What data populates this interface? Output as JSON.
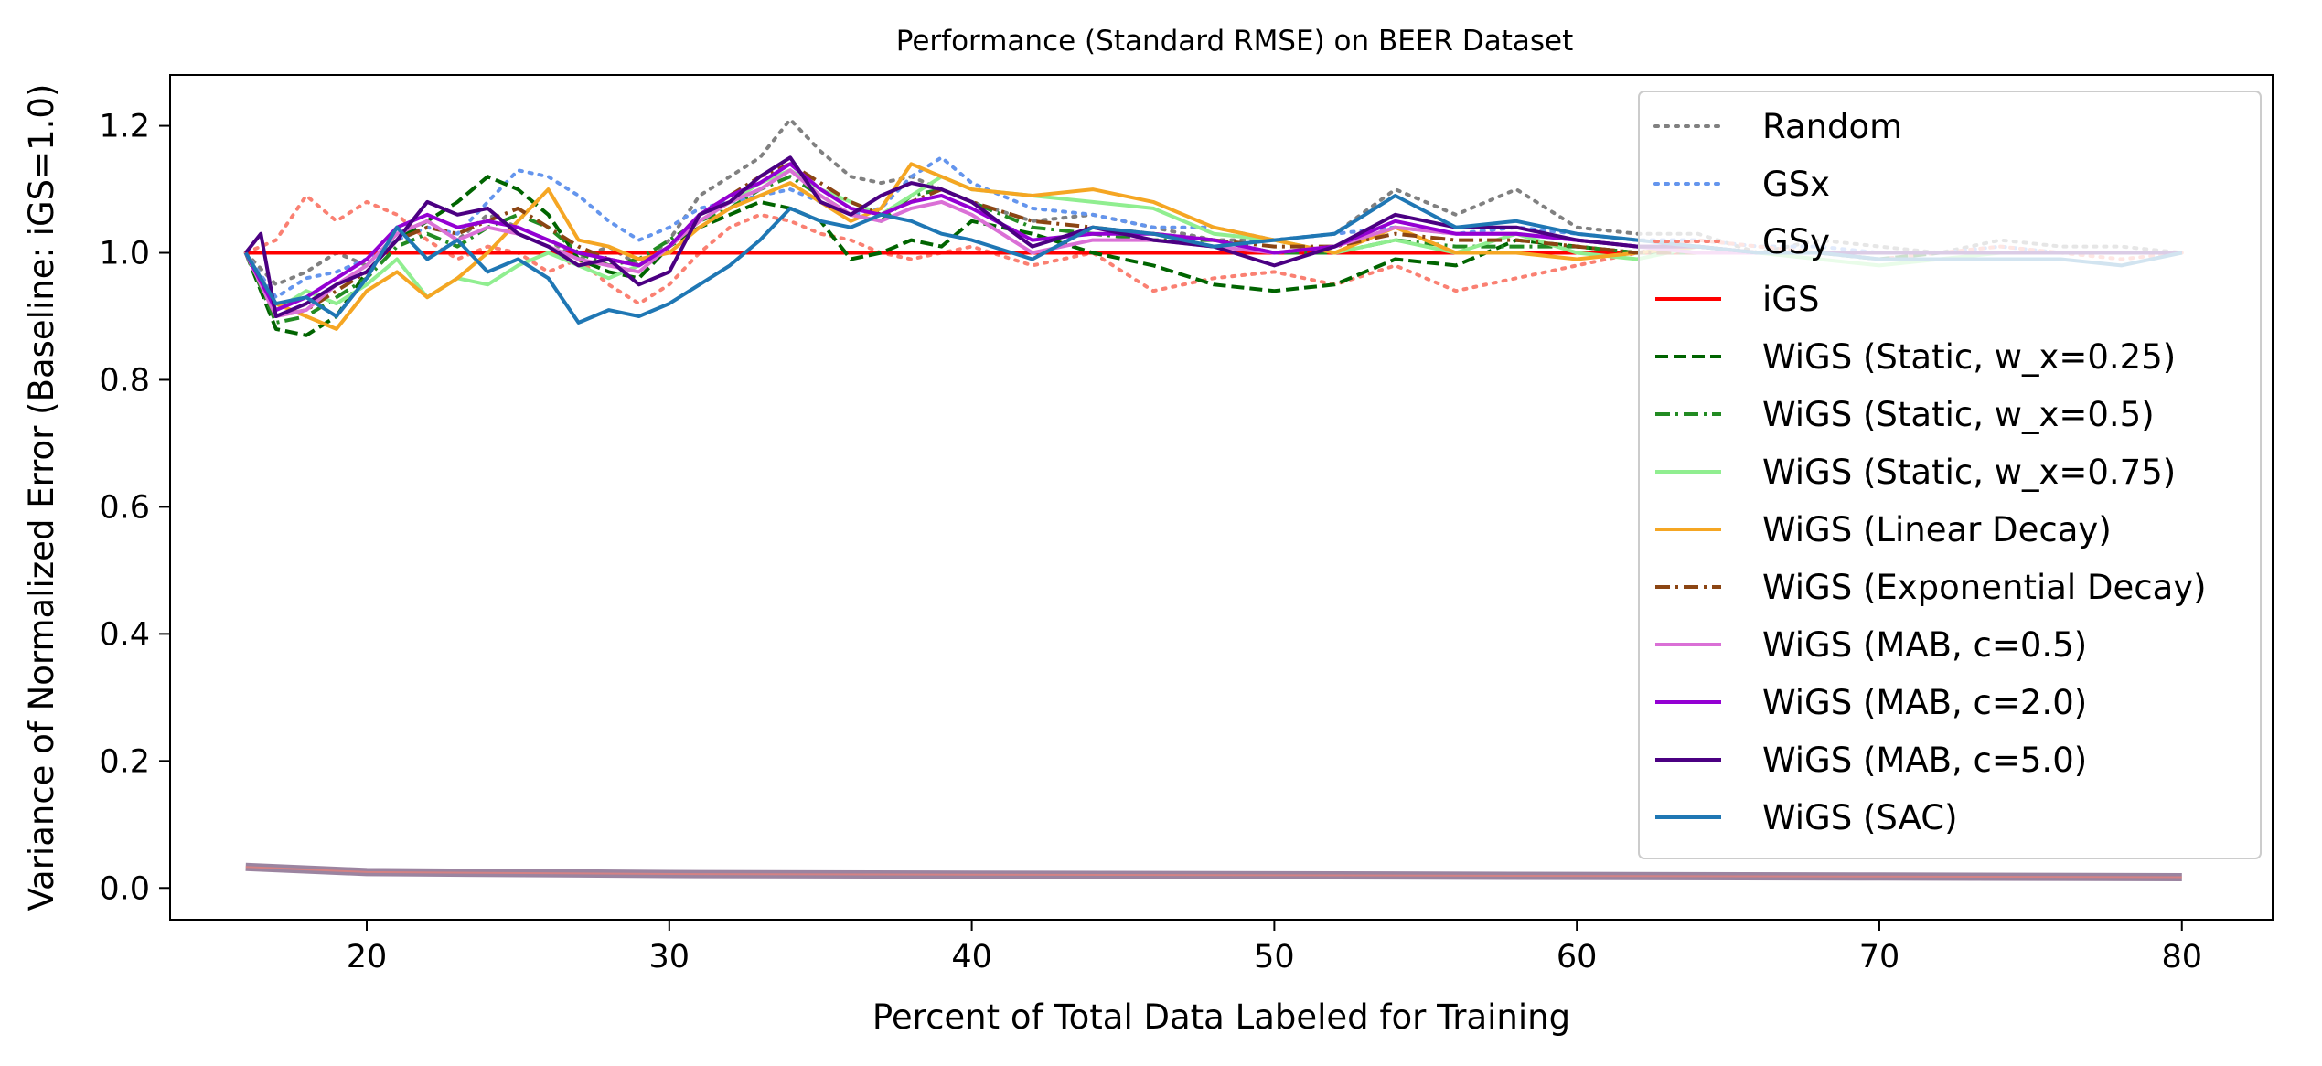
{
  "chart_data": {
    "type": "line",
    "title": "Performance (Standard RMSE) on BEER Dataset",
    "xlabel": "Percent of Total Data Labeled for Training",
    "ylabel": "Variance of Normalized Error (Baseline: iGS=1.0)",
    "xlim": [
      13.5,
      83.0
    ],
    "ylim": [
      -0.05,
      1.28
    ],
    "xticks": [
      20,
      30,
      40,
      50,
      60,
      70,
      80
    ],
    "yticks": [
      0.0,
      0.2,
      0.4,
      0.6,
      0.8,
      1.0,
      1.2
    ],
    "xtick_labels": [
      "20",
      "30",
      "40",
      "50",
      "60",
      "70",
      "80"
    ],
    "ytick_labels": [
      "0.0",
      "0.2",
      "0.4",
      "0.6",
      "0.8",
      "1.0",
      "1.2"
    ],
    "grid": false,
    "legend_position": "top-right",
    "series": [
      {
        "name": "Random",
        "color": "#808080",
        "dash": "dotted",
        "x": [
          16,
          17,
          18,
          19,
          20,
          21,
          22,
          23,
          24,
          25,
          26,
          27,
          28,
          29,
          30,
          31,
          32,
          33,
          34,
          35,
          36,
          37,
          38,
          39,
          40,
          42,
          44,
          46,
          48,
          50,
          52,
          54,
          56,
          58,
          60,
          62,
          64,
          66,
          68,
          70,
          72,
          74,
          76,
          78,
          80
        ],
        "y": [
          1.0,
          0.95,
          0.97,
          1.0,
          0.98,
          1.03,
          1.05,
          1.02,
          1.06,
          1.04,
          1.02,
          0.99,
          1.01,
          0.98,
          1.02,
          1.09,
          1.12,
          1.15,
          1.21,
          1.16,
          1.12,
          1.11,
          1.12,
          1.1,
          1.08,
          1.05,
          1.06,
          1.04,
          1.02,
          1.02,
          1.03,
          1.1,
          1.06,
          1.1,
          1.04,
          1.03,
          1.03,
          1.0,
          1.02,
          1.01,
          1.0,
          1.02,
          1.01,
          1.01,
          1.0
        ]
      },
      {
        "name": "GSx",
        "color": "#6495ed",
        "dash": "dotted",
        "x": [
          16,
          17,
          18,
          19,
          20,
          21,
          22,
          23,
          24,
          25,
          26,
          27,
          28,
          29,
          30,
          31,
          32,
          33,
          34,
          35,
          36,
          37,
          38,
          39,
          40,
          42,
          44,
          46,
          48,
          50,
          52,
          54,
          56,
          58,
          60,
          62,
          64,
          66,
          68,
          70,
          72,
          74,
          76,
          78,
          80
        ],
        "y": [
          1.0,
          0.93,
          0.96,
          0.97,
          0.99,
          1.02,
          1.04,
          1.03,
          1.08,
          1.13,
          1.12,
          1.09,
          1.05,
          1.02,
          1.04,
          1.07,
          1.08,
          1.09,
          1.1,
          1.08,
          1.06,
          1.07,
          1.12,
          1.15,
          1.11,
          1.07,
          1.06,
          1.04,
          1.04,
          1.02,
          1.03,
          1.04,
          1.03,
          1.04,
          1.03,
          1.02,
          1.02,
          1.01,
          1.01,
          1.0,
          1.0,
          1.01,
          1.0,
          1.0,
          1.0
        ]
      },
      {
        "name": "GSy",
        "color": "#fa8072",
        "dash": "dotted",
        "x": [
          16,
          17,
          18,
          19,
          20,
          21,
          22,
          23,
          24,
          25,
          26,
          27,
          28,
          29,
          30,
          31,
          32,
          33,
          34,
          35,
          36,
          37,
          38,
          39,
          40,
          42,
          44,
          46,
          48,
          50,
          52,
          54,
          56,
          58,
          60,
          62,
          64,
          66,
          68,
          70,
          72,
          74,
          76,
          78,
          80
        ],
        "y": [
          1.0,
          1.02,
          1.09,
          1.05,
          1.08,
          1.06,
          1.02,
          0.99,
          1.01,
          1.0,
          0.97,
          0.99,
          0.95,
          0.92,
          0.95,
          1.0,
          1.04,
          1.06,
          1.05,
          1.03,
          1.02,
          1.0,
          0.99,
          1.0,
          1.01,
          0.98,
          1.0,
          0.94,
          0.96,
          0.97,
          0.95,
          0.98,
          0.94,
          0.96,
          0.98,
          1.0,
          1.02,
          1.01,
          1.0,
          0.99,
          1.0,
          1.01,
          1.0,
          0.99,
          1.0
        ]
      },
      {
        "name": "iGS",
        "color": "#ff0000",
        "dash": "solid",
        "x": [
          16,
          80
        ],
        "y": [
          1.0,
          1.0
        ]
      },
      {
        "name": "WiGS (Static, w_x=0.25)",
        "color": "#006400",
        "dash": "dashed",
        "x": [
          16,
          17,
          18,
          19,
          20,
          21,
          22,
          23,
          24,
          25,
          26,
          27,
          28,
          29,
          30,
          31,
          32,
          33,
          34,
          35,
          36,
          37,
          38,
          39,
          40,
          42,
          44,
          46,
          48,
          50,
          52,
          54,
          56,
          58,
          60,
          62,
          64,
          66,
          68,
          70,
          72,
          74,
          76,
          78,
          80
        ],
        "y": [
          1.0,
          0.88,
          0.87,
          0.9,
          0.97,
          1.02,
          1.05,
          1.08,
          1.12,
          1.1,
          1.06,
          0.99,
          0.97,
          0.96,
          1.01,
          1.04,
          1.06,
          1.08,
          1.07,
          1.05,
          0.99,
          1.0,
          1.02,
          1.01,
          1.05,
          1.03,
          1.0,
          0.98,
          0.95,
          0.94,
          0.95,
          0.99,
          0.98,
          1.02,
          1.01,
          1.0,
          1.01,
          1.0,
          1.0,
          0.99,
          1.0,
          1.0,
          1.0,
          1.0,
          1.0
        ]
      },
      {
        "name": "WiGS (Static, w_x=0.5)",
        "color": "#228b22",
        "dash": "dashdot",
        "x": [
          16,
          17,
          18,
          19,
          20,
          21,
          22,
          23,
          24,
          25,
          26,
          27,
          28,
          29,
          30,
          31,
          32,
          33,
          34,
          35,
          36,
          37,
          38,
          39,
          40,
          42,
          44,
          46,
          48,
          50,
          52,
          54,
          56,
          58,
          60,
          62,
          64,
          66,
          68,
          70,
          72,
          74,
          76,
          78,
          80
        ],
        "y": [
          1.0,
          0.89,
          0.9,
          0.93,
          0.96,
          1.01,
          1.03,
          1.01,
          1.04,
          1.06,
          1.04,
          1.0,
          0.98,
          0.99,
          1.02,
          1.05,
          1.07,
          1.1,
          1.12,
          1.09,
          1.06,
          1.05,
          1.09,
          1.1,
          1.08,
          1.04,
          1.03,
          1.02,
          1.02,
          1.0,
          1.0,
          1.02,
          1.01,
          1.01,
          1.01,
          1.0,
          1.0,
          1.0,
          1.0,
          1.0,
          1.0,
          1.0,
          1.0,
          1.0,
          1.0
        ]
      },
      {
        "name": "WiGS (Static, w_x=0.75)",
        "color": "#90ee90",
        "dash": "solid",
        "x": [
          16,
          17,
          18,
          19,
          20,
          21,
          22,
          23,
          24,
          25,
          26,
          27,
          28,
          29,
          30,
          31,
          32,
          33,
          34,
          35,
          36,
          37,
          38,
          39,
          40,
          42,
          44,
          46,
          48,
          50,
          52,
          54,
          56,
          58,
          60,
          62,
          64,
          66,
          68,
          70,
          72,
          74,
          76,
          78,
          80
        ],
        "y": [
          1.0,
          0.91,
          0.94,
          0.92,
          0.95,
          0.99,
          0.93,
          0.96,
          0.95,
          0.98,
          1.0,
          0.98,
          0.96,
          0.98,
          1.01,
          1.05,
          1.08,
          1.11,
          1.13,
          1.1,
          1.08,
          1.06,
          1.09,
          1.12,
          1.1,
          1.09,
          1.08,
          1.07,
          1.03,
          1.02,
          1.0,
          1.02,
          1.0,
          1.03,
          1.0,
          0.99,
          1.01,
          1.0,
          0.99,
          0.98,
          0.99,
          1.0,
          1.0,
          1.0,
          1.0
        ]
      },
      {
        "name": "WiGS (Linear Decay)",
        "color": "#f5a623",
        "dash": "solid",
        "x": [
          16,
          17,
          18,
          19,
          20,
          21,
          22,
          23,
          24,
          25,
          26,
          27,
          28,
          29,
          30,
          31,
          32,
          33,
          34,
          35,
          36,
          37,
          38,
          39,
          40,
          42,
          44,
          46,
          48,
          50,
          52,
          54,
          56,
          58,
          60,
          62,
          64,
          66,
          68,
          70,
          72,
          74,
          76,
          78,
          80
        ],
        "y": [
          1.0,
          0.92,
          0.9,
          0.88,
          0.94,
          0.97,
          0.93,
          0.96,
          1.0,
          1.05,
          1.1,
          1.02,
          1.01,
          0.99,
          1.0,
          1.04,
          1.07,
          1.09,
          1.11,
          1.08,
          1.05,
          1.07,
          1.14,
          1.12,
          1.1,
          1.09,
          1.1,
          1.08,
          1.04,
          1.02,
          1.0,
          1.04,
          1.0,
          1.0,
          0.99,
          1.0,
          1.01,
          1.0,
          1.0,
          1.0,
          1.0,
          1.0,
          1.0,
          1.0,
          1.0
        ]
      },
      {
        "name": "WiGS (Exponential Decay)",
        "color": "#8b4513",
        "dash": "dashdot",
        "x": [
          16,
          17,
          18,
          19,
          20,
          21,
          22,
          23,
          24,
          25,
          26,
          27,
          28,
          29,
          30,
          31,
          32,
          33,
          34,
          35,
          36,
          37,
          38,
          39,
          40,
          42,
          44,
          46,
          48,
          50,
          52,
          54,
          56,
          58,
          60,
          62,
          64,
          66,
          68,
          70,
          72,
          74,
          76,
          78,
          80
        ],
        "y": [
          1.0,
          0.9,
          0.91,
          0.94,
          0.97,
          1.02,
          1.04,
          1.03,
          1.05,
          1.07,
          1.04,
          1.01,
          0.99,
          0.98,
          1.01,
          1.06,
          1.09,
          1.12,
          1.14,
          1.11,
          1.08,
          1.06,
          1.08,
          1.1,
          1.08,
          1.05,
          1.04,
          1.03,
          1.02,
          1.01,
          1.01,
          1.03,
          1.02,
          1.02,
          1.01,
          1.0,
          1.0,
          1.0,
          1.0,
          1.0,
          1.0,
          1.0,
          1.0,
          1.0,
          1.0
        ]
      },
      {
        "name": "WiGS (MAB, c=0.5)",
        "color": "#da70d6",
        "dash": "solid",
        "x": [
          16,
          17,
          18,
          19,
          20,
          21,
          22,
          23,
          24,
          25,
          26,
          27,
          28,
          29,
          30,
          31,
          32,
          33,
          34,
          35,
          36,
          37,
          38,
          39,
          40,
          42,
          44,
          46,
          48,
          50,
          52,
          54,
          56,
          58,
          60,
          62,
          64,
          66,
          68,
          70,
          72,
          74,
          76,
          78,
          80
        ],
        "y": [
          1.0,
          0.9,
          0.91,
          0.95,
          0.98,
          1.03,
          1.05,
          1.02,
          1.04,
          1.03,
          1.01,
          0.99,
          0.98,
          0.97,
          1.01,
          1.05,
          1.08,
          1.1,
          1.13,
          1.09,
          1.06,
          1.05,
          1.07,
          1.08,
          1.06,
          1.0,
          1.02,
          1.02,
          1.01,
          1.0,
          1.01,
          1.04,
          1.03,
          1.03,
          1.02,
          1.01,
          1.0,
          1.0,
          1.0,
          1.0,
          1.0,
          1.0,
          1.0,
          1.0,
          1.0
        ]
      },
      {
        "name": "WiGS (MAB, c=2.0)",
        "color": "#9400d3",
        "dash": "solid",
        "x": [
          16,
          17,
          18,
          19,
          20,
          21,
          22,
          23,
          24,
          25,
          26,
          27,
          28,
          29,
          30,
          31,
          32,
          33,
          34,
          35,
          36,
          37,
          38,
          39,
          40,
          42,
          44,
          46,
          48,
          50,
          52,
          54,
          56,
          58,
          60,
          62,
          64,
          66,
          68,
          70,
          72,
          74,
          76,
          78,
          80
        ],
        "y": [
          1.0,
          0.91,
          0.93,
          0.96,
          0.99,
          1.04,
          1.06,
          1.04,
          1.05,
          1.04,
          1.02,
          1.0,
          0.99,
          0.98,
          1.01,
          1.06,
          1.09,
          1.11,
          1.14,
          1.1,
          1.07,
          1.06,
          1.08,
          1.09,
          1.07,
          1.02,
          1.03,
          1.03,
          1.02,
          1.0,
          1.01,
          1.05,
          1.03,
          1.03,
          1.02,
          1.01,
          1.01,
          1.0,
          1.0,
          1.0,
          1.0,
          1.0,
          1.0,
          1.0,
          1.0
        ]
      },
      {
        "name": "WiGS (MAB, c=5.0)",
        "color": "#4b0082",
        "dash": "solid",
        "x": [
          16,
          16.5,
          17,
          18,
          19,
          20,
          21,
          22,
          23,
          24,
          25,
          26,
          27,
          28,
          29,
          30,
          31,
          32,
          33,
          34,
          35,
          36,
          37,
          38,
          39,
          40,
          42,
          44,
          46,
          48,
          50,
          52,
          54,
          56,
          58,
          60,
          62,
          64,
          66,
          68,
          70,
          72,
          74,
          76,
          78,
          80
        ],
        "y": [
          1.0,
          1.03,
          0.9,
          0.92,
          0.95,
          0.97,
          1.02,
          1.08,
          1.06,
          1.07,
          1.03,
          1.01,
          0.98,
          0.99,
          0.95,
          0.97,
          1.06,
          1.08,
          1.12,
          1.15,
          1.08,
          1.06,
          1.09,
          1.11,
          1.1,
          1.08,
          1.01,
          1.04,
          1.02,
          1.01,
          0.98,
          1.01,
          1.06,
          1.04,
          1.04,
          1.02,
          1.01,
          1.01,
          1.0,
          1.0,
          1.0,
          1.0,
          1.0,
          1.0,
          1.0,
          1.0
        ]
      },
      {
        "name": "WiGS (SAC)",
        "color": "#1f77b4",
        "dash": "solid",
        "x": [
          16,
          17,
          18,
          19,
          20,
          21,
          22,
          23,
          24,
          25,
          26,
          27,
          28,
          29,
          30,
          31,
          32,
          33,
          34,
          35,
          36,
          37,
          38,
          39,
          40,
          42,
          44,
          46,
          48,
          50,
          52,
          54,
          56,
          58,
          60,
          62,
          64,
          66,
          68,
          70,
          72,
          74,
          76,
          78,
          80
        ],
        "y": [
          1.0,
          0.92,
          0.93,
          0.9,
          0.96,
          1.04,
          0.99,
          1.02,
          0.97,
          0.99,
          0.96,
          0.89,
          0.91,
          0.9,
          0.92,
          0.95,
          0.98,
          1.02,
          1.07,
          1.05,
          1.04,
          1.06,
          1.05,
          1.03,
          1.02,
          0.99,
          1.04,
          1.03,
          1.01,
          1.02,
          1.03,
          1.09,
          1.04,
          1.05,
          1.03,
          1.02,
          1.01,
          1.0,
          1.0,
          0.99,
          0.99,
          0.99,
          0.99,
          0.98,
          1.0
        ]
      }
    ],
    "variance_band": {
      "x": [
        16,
        20,
        30,
        40,
        50,
        60,
        70,
        80
      ],
      "y": [
        0.033,
        0.025,
        0.022,
        0.021,
        0.02,
        0.019,
        0.018,
        0.017
      ]
    }
  }
}
